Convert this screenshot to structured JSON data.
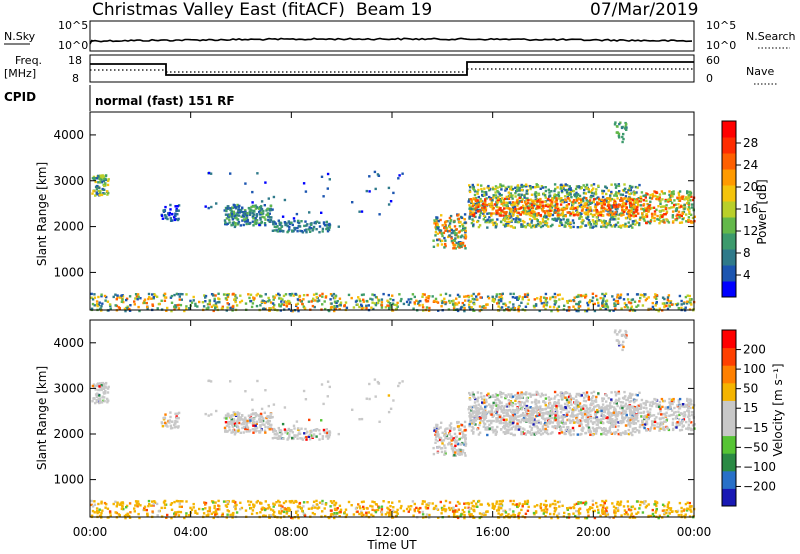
{
  "header": {
    "station": "Christmas Valley East (fitACF)",
    "beam": "Beam 19",
    "date": "07/Mar/2019"
  },
  "top_panels": {
    "nsky_label": "N.Sky",
    "nsky_ticks": [
      "10^5",
      "10^0"
    ],
    "nsearch_label": "N.Search",
    "nsearch_ticks": [
      "10^5",
      "10^0"
    ],
    "freq_label_1": "Freq.",
    "freq_label_2": "[MHz]",
    "freq_ticks": [
      "18",
      "8"
    ],
    "nave_label": "Nave",
    "nave_ticks": [
      "60",
      "0"
    ],
    "cpid_label": "CPID",
    "cpid_text": "normal (fast) 151 RF"
  },
  "chart_data": [
    {
      "type": "heatmap",
      "name": "power",
      "ylabel": "Slant Range [km]",
      "yticks": [
        "4000",
        "3000",
        "2000",
        "1000"
      ],
      "ylim": [
        180,
        4500
      ],
      "xlim": [
        0,
        24
      ],
      "colorbar_label": "Power [dB]",
      "colorbar_ticks": [
        "28",
        "24",
        "20",
        "16",
        "12",
        "8",
        "4"
      ],
      "colorbar_colors": [
        "#0000ff",
        "#1c55b0",
        "#2f7a8a",
        "#3c9a6c",
        "#63b84a",
        "#b9cf2a",
        "#f4c40c",
        "#ff9a00",
        "#ff6000",
        "#ff2c00",
        "#ff0000"
      ]
    },
    {
      "type": "heatmap",
      "name": "velocity",
      "ylabel": "Slant Range [km]",
      "yticks": [
        "4000",
        "3000",
        "2000",
        "1000"
      ],
      "ylim": [
        180,
        4500
      ],
      "xlim": [
        0,
        24
      ],
      "colorbar_label": "Velocity [m s⁻¹]",
      "colorbar_ticks": [
        "200",
        "100",
        "50",
        "15",
        "−15",
        "−50",
        "−100",
        "−200"
      ],
      "colorbar_colors": [
        "#1919b4",
        "#2870c8",
        "#2a8a44",
        "#56c434",
        "#c8c8c8",
        "#c8c8c8",
        "#f4b400",
        "#ff8000",
        "#ff4000",
        "#ff0000"
      ]
    }
  ],
  "xaxis": {
    "ticks": [
      "00:00",
      "04:00",
      "08:00",
      "12:00",
      "16:00",
      "20:00",
      "00:00"
    ],
    "label": "Time UT"
  }
}
